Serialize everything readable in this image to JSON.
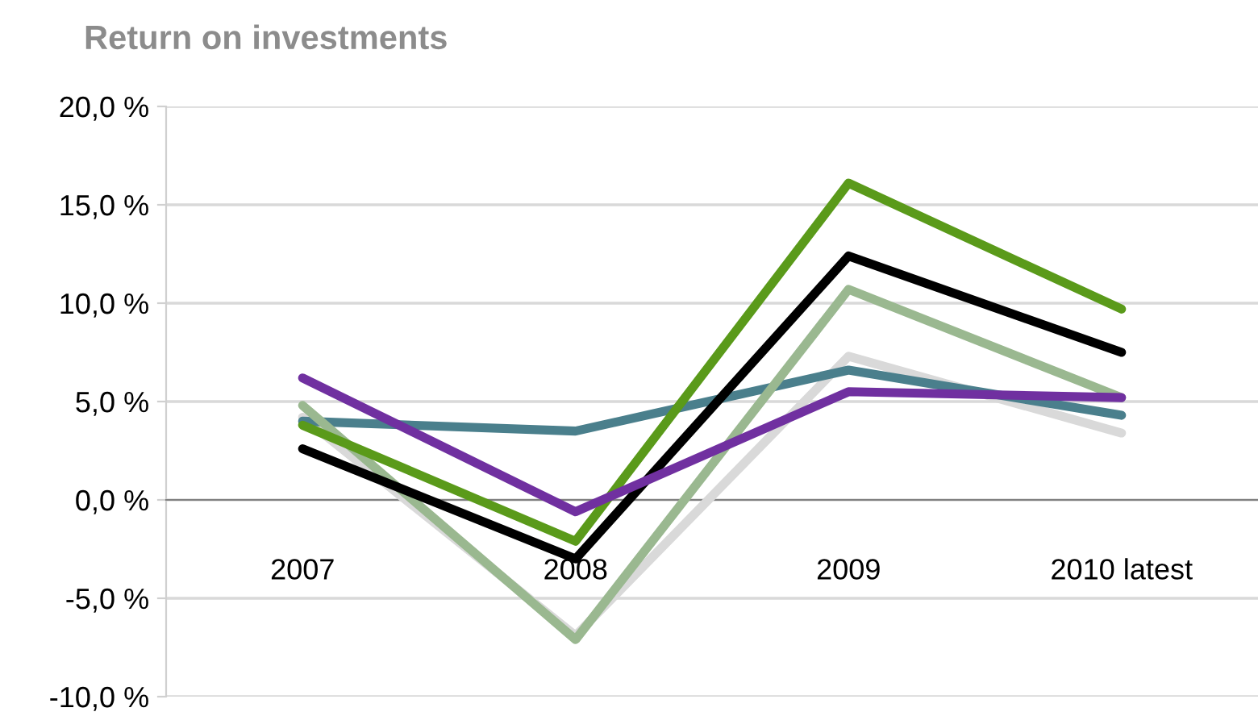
{
  "chart_data": {
    "type": "line",
    "title": "Return on investments",
    "categories": [
      "2007",
      "2008",
      "2009",
      "2010 latest"
    ],
    "series": [
      {
        "color": "#d9d9d9",
        "values": [
          4.2,
          -6.9,
          7.3,
          3.4
        ]
      },
      {
        "color": "#4a7f8c",
        "values": [
          4.0,
          3.5,
          6.6,
          4.3
        ]
      },
      {
        "color": "#9ab890",
        "values": [
          4.8,
          -7.1,
          10.7,
          5.2
        ]
      },
      {
        "color": "#000000",
        "values": [
          2.6,
          -3.0,
          12.4,
          7.5
        ]
      },
      {
        "color": "#5a9a1a",
        "values": [
          3.8,
          -2.1,
          16.1,
          9.7
        ]
      },
      {
        "color": "#7030a0",
        "values": [
          6.2,
          -0.6,
          5.5,
          5.2
        ]
      }
    ],
    "ylim": [
      -10,
      20
    ],
    "yticks": [
      {
        "value": -10,
        "label": "-10,0 %"
      },
      {
        "value": -5,
        "label": "-5,0 %"
      },
      {
        "value": 0,
        "label": "0,0 %"
      },
      {
        "value": 5,
        "label": "5,0 %"
      },
      {
        "value": 10,
        "label": "10,0 %"
      },
      {
        "value": 15,
        "label": "15,0 %"
      },
      {
        "value": 20,
        "label": "20,0 %"
      }
    ],
    "grid": "y",
    "legend": false,
    "marker": "none",
    "line_style": "solid"
  }
}
